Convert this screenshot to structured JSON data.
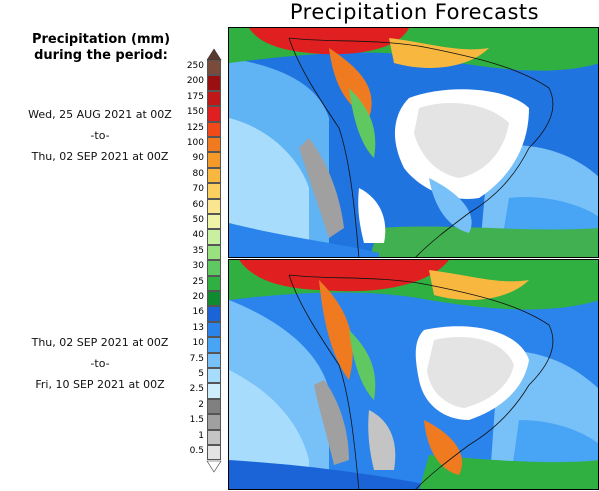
{
  "title": "Precipitation Forecasts",
  "legend": {
    "heading_line1": "Precipitation (mm)",
    "heading_line2": "during the period:",
    "levels": [
      "250",
      "200",
      "175",
      "150",
      "125",
      "100",
      "90",
      "80",
      "70",
      "60",
      "50",
      "40",
      "35",
      "30",
      "25",
      "20",
      "16",
      "13",
      "10",
      "7.5",
      "5",
      "2.5",
      "2",
      "1.5",
      "1",
      "0.5"
    ],
    "colors": [
      "#7a4a3a",
      "#9a1010",
      "#c01818",
      "#e02020",
      "#f04a1a",
      "#f07a20",
      "#f59a28",
      "#f8b840",
      "#fad060",
      "#fae690",
      "#eef4a8",
      "#c8f0a0",
      "#98e080",
      "#60c860",
      "#30b040",
      "#108a30",
      "#1a64d8",
      "#2a84ec",
      "#48a4f4",
      "#78c0f8",
      "#a8dcfc",
      "#cfeefd",
      "#808080",
      "#a0a0a0",
      "#c4c4c4",
      "#e4e4e4"
    ]
  },
  "periods": [
    {
      "start": "Wed, 25 AUG 2021 at 00Z",
      "sep": "-to-",
      "end": "Thu, 02 SEP 2021 at 00Z"
    },
    {
      "start": "Thu, 02 SEP 2021 at 00Z",
      "sep": "-to-",
      "end": "Fri, 10 SEP 2021 at 00Z"
    }
  ],
  "maps": [
    {
      "region": "South America",
      "period_index": 0
    },
    {
      "region": "South America",
      "period_index": 1
    }
  ]
}
